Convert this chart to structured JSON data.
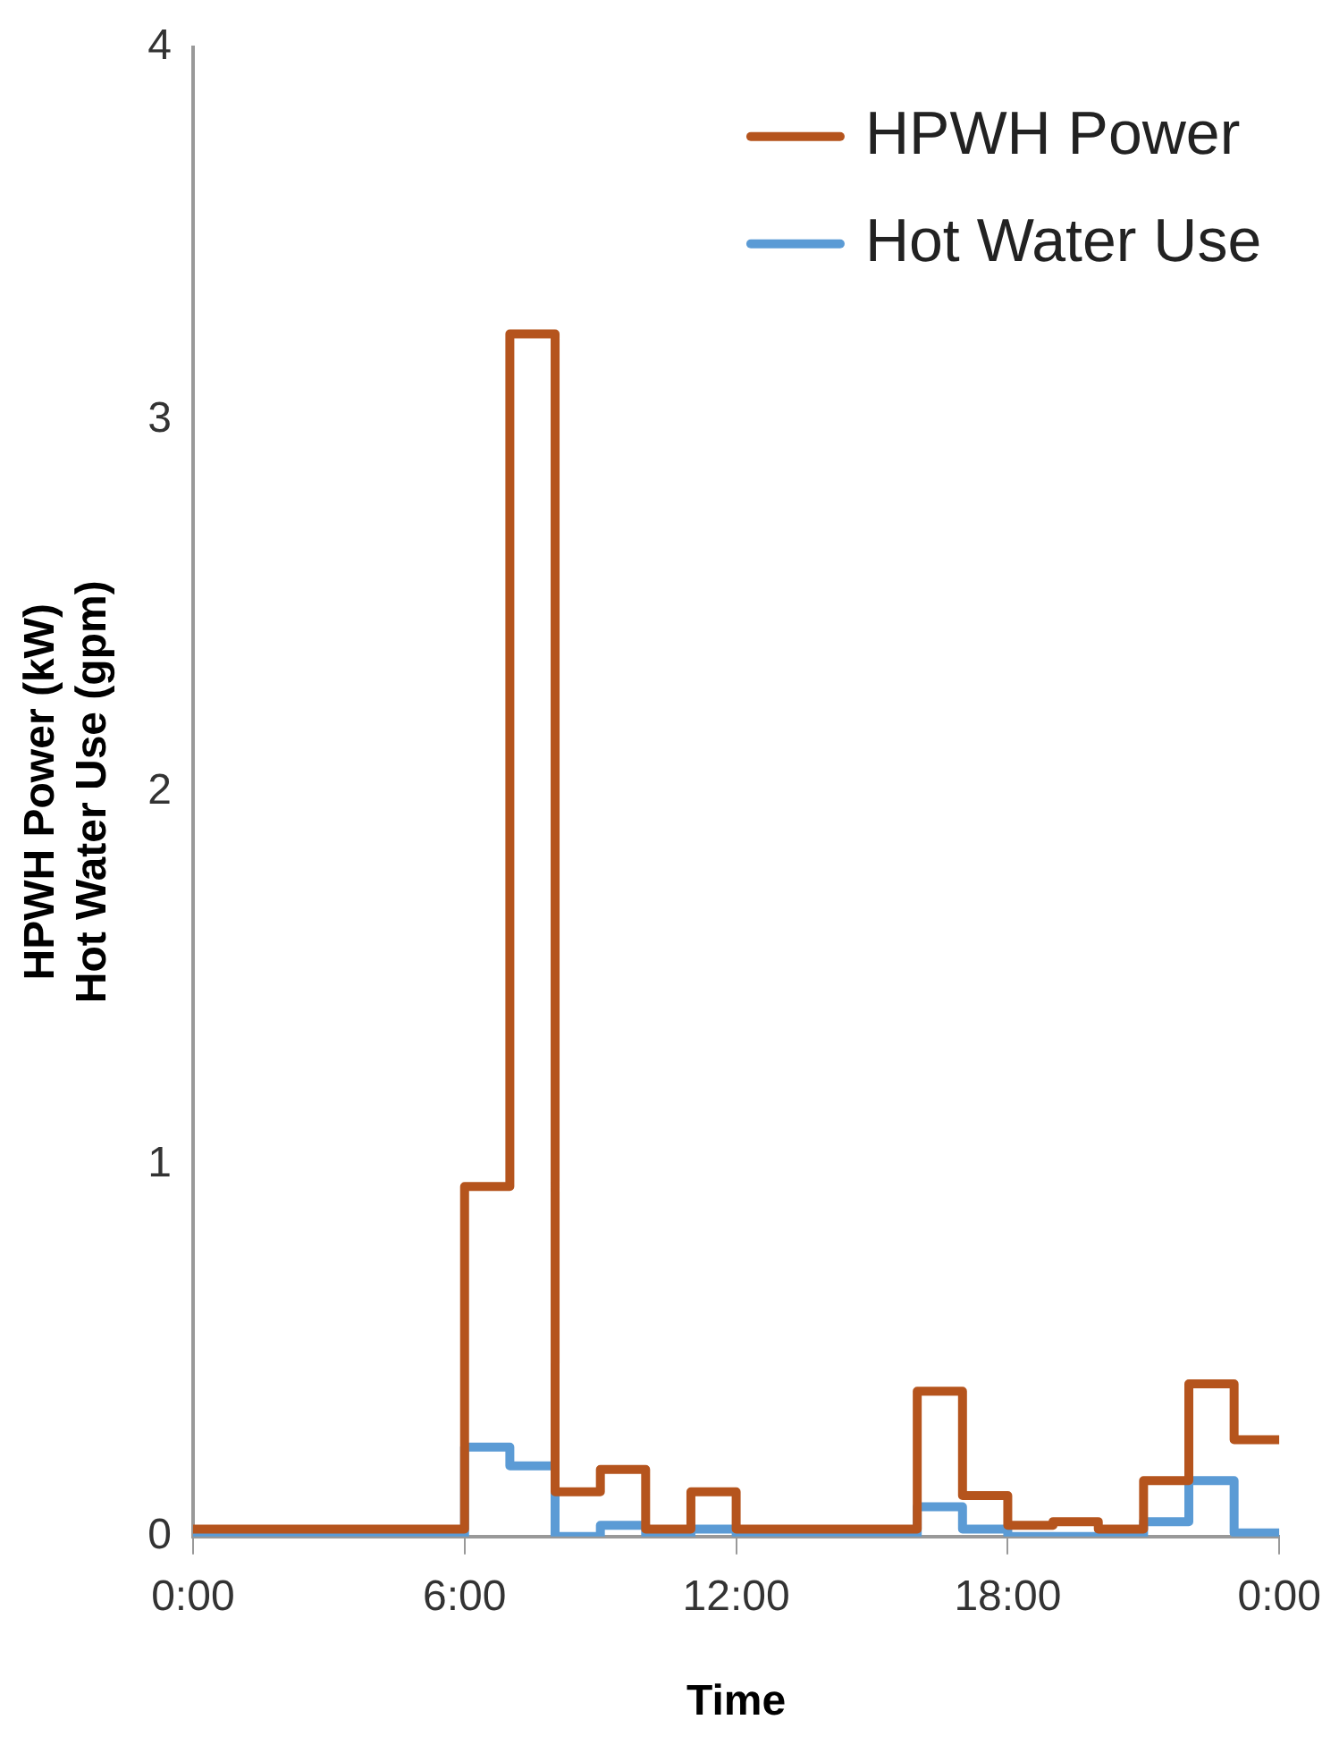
{
  "chart_data": {
    "type": "step",
    "xlabel": "Time",
    "ylabel": "HPWH Power (kW)\nHot Water Use (gpm)",
    "x": [
      0,
      1,
      2,
      3,
      4,
      5,
      6,
      7,
      8,
      9,
      10,
      11,
      12,
      13,
      14,
      15,
      16,
      17,
      18,
      19,
      20,
      21,
      22,
      23,
      24
    ],
    "xlim": [
      0,
      24
    ],
    "xticks": [
      {
        "value": 0,
        "label": "0:00"
      },
      {
        "value": 6,
        "label": "6:00"
      },
      {
        "value": 12,
        "label": "12:00"
      },
      {
        "value": 18,
        "label": "18:00"
      },
      {
        "value": 24,
        "label": "0:00"
      }
    ],
    "ylim": [
      0,
      4
    ],
    "yticks": [
      0,
      1,
      2,
      3,
      4
    ],
    "series": [
      {
        "name": "HPWH Power",
        "color": "#b5541d",
        "values": [
          0.02,
          0.02,
          0.02,
          0.02,
          0.02,
          0.02,
          0.94,
          3.23,
          0.12,
          0.18,
          0.02,
          0.12,
          0.02,
          0.02,
          0.02,
          0.02,
          0.39,
          0.11,
          0.03,
          0.04,
          0.02,
          0.15,
          0.41,
          0.26,
          0.26
        ]
      },
      {
        "name": "Hot Water Use",
        "color": "#5b9bd5",
        "values": [
          0,
          0,
          0,
          0,
          0,
          0,
          0.24,
          0.19,
          0,
          0.03,
          0,
          0.02,
          0,
          0,
          0,
          0,
          0.08,
          0.02,
          0,
          0,
          0,
          0.04,
          0.15,
          0.01,
          0.01
        ]
      }
    ],
    "grid": false,
    "legend": "top right",
    "marker": "none",
    "line_style": "solid"
  }
}
